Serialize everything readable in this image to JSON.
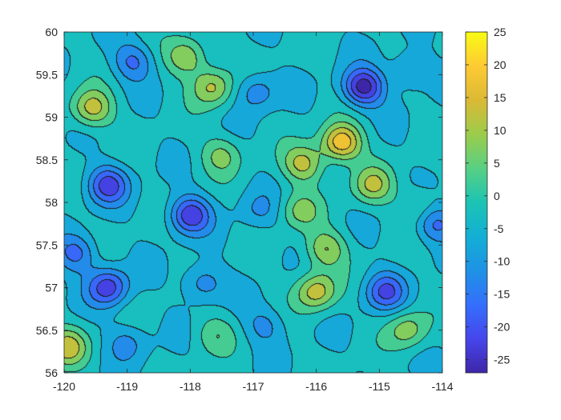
{
  "chart_data": {
    "type": "contour",
    "xlim": [
      -120,
      -114
    ],
    "ylim": [
      56,
      60
    ],
    "xticks": [
      -120,
      -119,
      -118,
      -117,
      -116,
      -115,
      -114
    ],
    "yticks": [
      56,
      56.5,
      57,
      57.5,
      58,
      58.5,
      59,
      59.5,
      60
    ],
    "x_tick_labels": [
      "-120",
      "-119",
      "-118",
      "-117",
      "-116",
      "-115",
      "-114"
    ],
    "y_tick_labels": [
      "56",
      "56.5",
      "57",
      "57.5",
      "58",
      "58.5",
      "59",
      "59.5",
      "60"
    ],
    "colorbar": {
      "range": [
        -27,
        25
      ],
      "ticks": [
        25,
        20,
        15,
        10,
        5,
        0,
        -5,
        -10,
        -15,
        -20,
        -25
      ],
      "tick_labels": [
        "25",
        "20",
        "15",
        "10",
        "5",
        "0",
        "-5",
        "-10",
        "-15",
        "-20",
        "-25"
      ],
      "colormap": "parula"
    },
    "contour_step": 5,
    "features": [
      {
        "kind": "high",
        "x": -115.6,
        "y": 58.7,
        "value": 22
      },
      {
        "kind": "high",
        "x": -116.2,
        "y": 58.45,
        "value": 14
      },
      {
        "kind": "high",
        "x": -115.1,
        "y": 58.2,
        "value": 12
      },
      {
        "kind": "high",
        "x": -117.5,
        "y": 58.55,
        "value": 8
      },
      {
        "kind": "high",
        "x": -117.65,
        "y": 59.35,
        "value": 13
      },
      {
        "kind": "high",
        "x": -118.05,
        "y": 59.7,
        "value": 12
      },
      {
        "kind": "high",
        "x": -119.55,
        "y": 59.1,
        "value": 15
      },
      {
        "kind": "high",
        "x": -116.0,
        "y": 56.95,
        "value": 15
      },
      {
        "kind": "high",
        "x": -115.85,
        "y": 57.45,
        "value": 12
      },
      {
        "kind": "high",
        "x": -114.55,
        "y": 56.5,
        "value": 10
      },
      {
        "kind": "high",
        "x": -119.95,
        "y": 56.3,
        "value": 14
      },
      {
        "kind": "high",
        "x": -116.25,
        "y": 57.9,
        "value": 8
      },
      {
        "kind": "high",
        "x": -117.6,
        "y": 56.45,
        "value": 5
      },
      {
        "kind": "high",
        "x": -114.35,
        "y": 57.95,
        "value": 5
      },
      {
        "kind": "low",
        "x": -115.25,
        "y": 59.35,
        "value": -26
      },
      {
        "kind": "low",
        "x": -118.0,
        "y": 57.85,
        "value": -22
      },
      {
        "kind": "low",
        "x": -119.3,
        "y": 57.0,
        "value": -21
      },
      {
        "kind": "low",
        "x": -119.3,
        "y": 58.2,
        "value": -20
      },
      {
        "kind": "low",
        "x": -114.9,
        "y": 56.95,
        "value": -18
      },
      {
        "kind": "low",
        "x": -114.1,
        "y": 57.75,
        "value": -15
      },
      {
        "kind": "low",
        "x": -119.8,
        "y": 57.4,
        "value": -15
      },
      {
        "kind": "low",
        "x": -118.9,
        "y": 59.65,
        "value": -14
      },
      {
        "kind": "low",
        "x": -116.95,
        "y": 59.3,
        "value": -12
      },
      {
        "kind": "low",
        "x": -114.5,
        "y": 59.55,
        "value": -10
      },
      {
        "kind": "low",
        "x": -117.8,
        "y": 57.05,
        "value": -12
      },
      {
        "kind": "low",
        "x": -116.8,
        "y": 56.55,
        "value": -10
      },
      {
        "kind": "low",
        "x": -119.0,
        "y": 56.35,
        "value": -10
      },
      {
        "kind": "low",
        "x": -116.9,
        "y": 57.9,
        "value": -8
      }
    ]
  }
}
